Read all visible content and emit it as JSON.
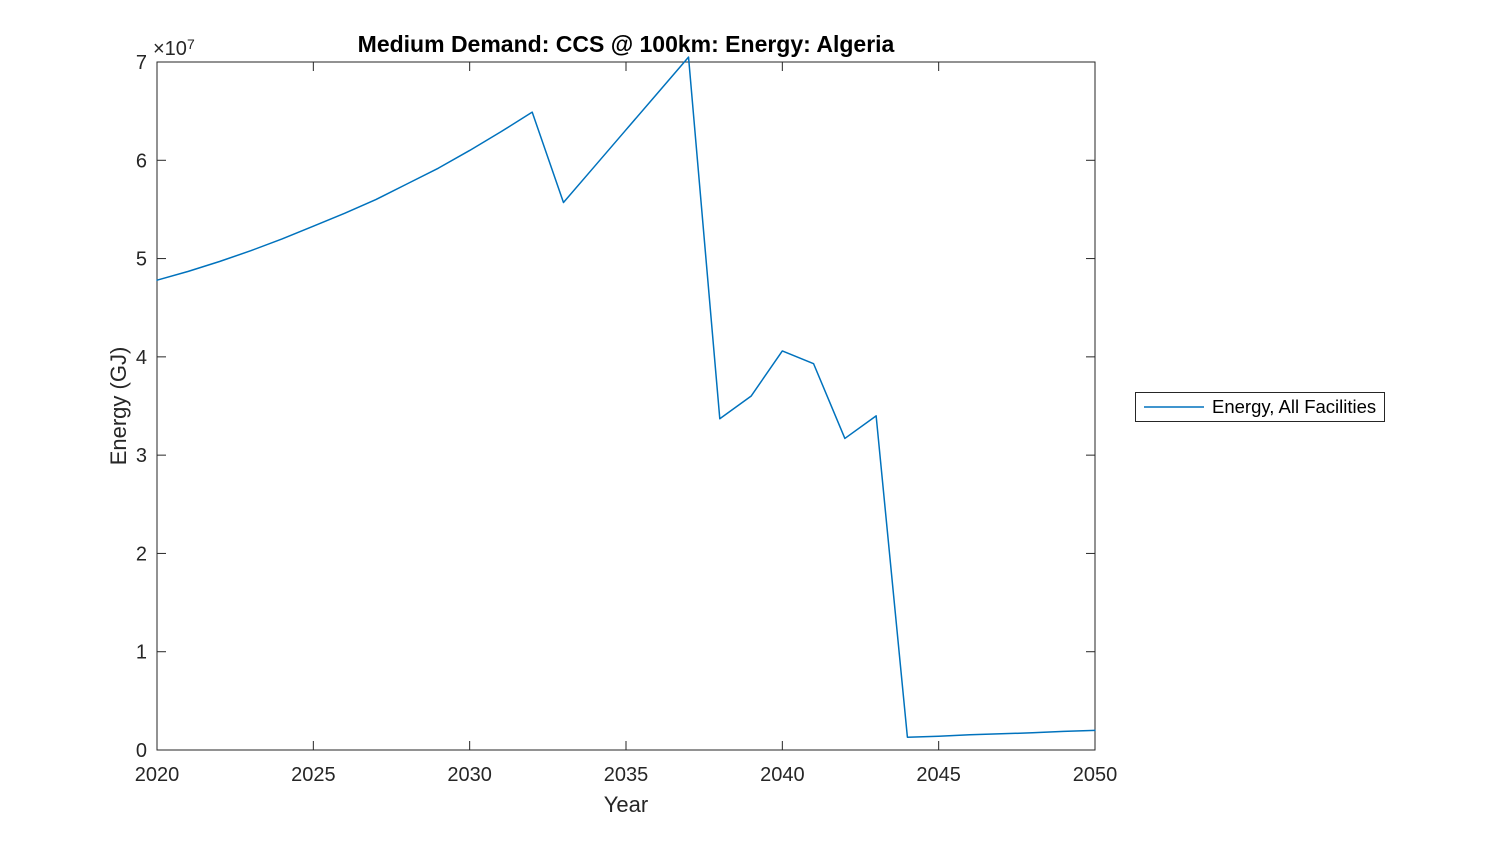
{
  "title": "Medium Demand: CCS @ 100km: Energy: Algeria",
  "axes": {
    "xlabel": "Year",
    "ylabel": "Energy (GJ)",
    "exponent_base": "×10",
    "exponent_power": "7",
    "x_ticks": [
      2020,
      2025,
      2030,
      2035,
      2040,
      2045,
      2050
    ],
    "y_ticks": [
      0,
      1,
      2,
      3,
      4,
      5,
      6,
      7
    ],
    "axis_color": "#262626"
  },
  "legend": {
    "items": [
      {
        "label": "Energy, All Facilities",
        "color": "#0072BD"
      }
    ]
  },
  "chart_data": {
    "type": "line",
    "title": "Medium Demand: CCS @ 100km: Energy: Algeria",
    "xlabel": "Year",
    "ylabel": "Energy (GJ)",
    "xlim": [
      2020,
      2050
    ],
    "ylim": [
      0,
      70000000
    ],
    "grid": false,
    "legend_position": "right-outside",
    "series": [
      {
        "name": "Energy, All Facilities",
        "color": "#0072BD",
        "x": [
          2020,
          2021,
          2022,
          2023,
          2024,
          2025,
          2026,
          2027,
          2028,
          2029,
          2030,
          2031,
          2032,
          2033,
          2034,
          2035,
          2036,
          2037,
          2038,
          2039,
          2040,
          2041,
          2042,
          2043,
          2044,
          2045,
          2046,
          2047,
          2048,
          2049,
          2050
        ],
        "y": [
          47800000,
          48700000,
          49700000,
          50800000,
          52000000,
          53300000,
          54600000,
          56000000,
          57600000,
          59200000,
          61000000,
          62900000,
          64900000,
          55700000,
          59400000,
          63100000,
          66800000,
          70500000,
          33700000,
          36000000,
          40600000,
          39300000,
          31700000,
          34000000,
          1300000,
          1400000,
          1550000,
          1650000,
          1750000,
          1900000,
          2000000
        ]
      }
    ]
  }
}
